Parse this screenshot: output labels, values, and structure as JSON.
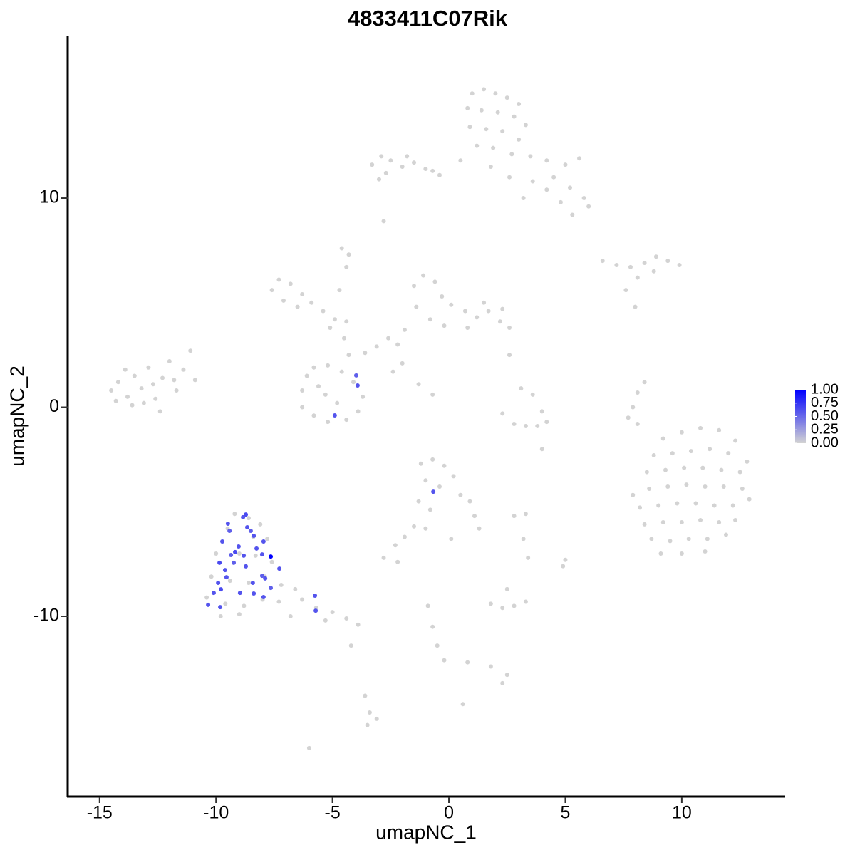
{
  "chart_data": {
    "type": "scatter",
    "title": "4833411C07Rik",
    "x_label": "umapNC_1",
    "y_label": "umapNC_2",
    "xlim": [
      -16.37,
      14.44
    ],
    "ylim": [
      -18.62,
      17.77
    ],
    "xticks": [
      -15,
      -10,
      -5,
      0,
      5,
      10
    ],
    "yticks": [
      -10,
      0,
      10
    ],
    "low_color": "#d3d3d3",
    "high_color": "#0000ff",
    "color_range": [
      0,
      1
    ],
    "color_ticks": [
      {
        "value": 1,
        "label": "1.00"
      },
      {
        "value": 0.75,
        "label": "0.75"
      },
      {
        "value": 0.5,
        "label": "0.50"
      },
      {
        "value": 0.25,
        "label": "0.25"
      },
      {
        "value": 0,
        "label": "0.00"
      }
    ],
    "x": [
      1,
      1.5,
      2,
      2.5,
      3,
      0.8,
      1.4,
      2.1,
      2.8,
      3.3,
      0.9,
      1.6,
      2.3,
      3,
      1.2,
      1.9,
      2.7,
      3.5,
      4.2,
      5,
      5.6,
      4.5,
      5.2,
      5.8,
      6,
      4.8,
      4.2,
      3.6,
      0.5,
      -0.4,
      1.8,
      2.6,
      5.3,
      3.2,
      -3.3,
      -2.9,
      -2.5,
      -2,
      -1.5,
      -1,
      -2.7,
      -3,
      -1.8,
      -0.7,
      -2.8,
      -14.5,
      -14.2,
      -13.8,
      -13.5,
      -13.2,
      -12.9,
      -12.6,
      -12.3,
      -12,
      -11.7,
      -11.4,
      -11.1,
      -13.9,
      -13.1,
      -14.3,
      -12.4,
      -11.8,
      -10.9,
      -13.6,
      -12.7,
      -6.3,
      -6.1,
      -5.8,
      -5.2,
      -4.6,
      -4.1,
      -3.7,
      -3.9,
      -4.4,
      -5.2,
      -5.8,
      -6.3,
      -5.3,
      -4.8,
      -5.6,
      -4.3,
      -4.5,
      -7.6,
      -7.3,
      -6.8,
      -6.3,
      -5.9,
      -5.4,
      -4.9,
      -4.4,
      -7.1,
      -6.5,
      -4.7,
      -4.4,
      -5.1,
      -4.3,
      -4.6,
      -1.5,
      -1.1,
      -0.6,
      -0.3,
      0.1,
      0.7,
      1.2,
      1.7,
      2.2,
      2.6,
      2.3,
      1.5,
      -1.4,
      -0.8,
      -1.9,
      -2.6,
      -3.1,
      -3.6,
      -2.2,
      -2,
      -1.3,
      -0.7,
      -2.4,
      2.6,
      0.8,
      -0.2,
      6.6,
      7.2,
      7.8,
      8.4,
      8.9,
      9.4,
      9.9,
      8.1,
      7.6,
      8.8,
      9.2,
      10,
      10.8,
      11.6,
      12.3,
      8.8,
      9.6,
      10.4,
      11.2,
      12,
      12.8,
      8.5,
      9.3,
      10.1,
      10.9,
      11.7,
      12.5,
      7.9,
      8.6,
      9.4,
      10.2,
      11,
      11.8,
      12.6,
      8.2,
      9,
      9.8,
      10.6,
      11.4,
      12.2,
      12.9,
      8.4,
      9.2,
      10,
      10.8,
      11.6,
      12.3,
      8.7,
      9.5,
      10.3,
      11.1,
      11.9,
      9.1,
      10,
      11,
      -9.2,
      -8.6,
      -8.1,
      -9.5,
      -8.4,
      -7.8,
      -10,
      -9,
      -8.3,
      -7.6,
      -10.2,
      -9.4,
      -8.6,
      -7.9,
      -7.2,
      -6.6,
      -10.4,
      -9.6,
      -8.8,
      -8,
      -7.3,
      -6.3,
      -5.7,
      -5,
      -4.4,
      -3.9,
      -9.8,
      -9,
      -6.8,
      -5.3,
      -4.2,
      -1.2,
      -0.7,
      -0.2,
      0.2,
      -1,
      -0.4,
      0.5,
      0.9,
      1.1,
      -1.3,
      -0.8,
      -1.5,
      -1.9,
      -2.3,
      -2.8,
      -2.2,
      1.3,
      2.3,
      2.8,
      3.3,
      3.8,
      4.2,
      3.1,
      3.6,
      4,
      8.1,
      8.4,
      7.9,
      7.7,
      8.1,
      2.8,
      3.3,
      3.2,
      3.4,
      5,
      4.9,
      1.8,
      2.3,
      2.8,
      3.3,
      2.5,
      -0.9,
      -0.7,
      -0.5,
      -0.2,
      0.8,
      1.8,
      2.5,
      2.3,
      -3.6,
      -3.4,
      -3.5,
      -3.1,
      -6,
      0.6,
      4,
      0.1,
      -1,
      8,
      -9.49,
      -9.42,
      -8.72,
      -8.84,
      -8.66,
      -8.51,
      -9.03,
      -9.18,
      -8.26,
      -8.02,
      -7.65,
      -7.28,
      -7.89,
      -8.02,
      -8.72,
      -9.73,
      -9.85,
      -9.61,
      -9.55,
      -9.24,
      -9.91,
      -10.1,
      -9.79,
      -10.34,
      -9.82,
      -8.97,
      -8.38,
      -7.96,
      -7.65,
      -8.42,
      -5.75,
      -5.72,
      -4.9,
      -3.98,
      -3.92,
      -0.67,
      -8.38,
      -9.36,
      -8.81,
      -7.96
    ],
    "y": [
      15,
      15.2,
      15,
      14.8,
      14.5,
      14.3,
      14.2,
      14.1,
      13.9,
      13.5,
      13.4,
      13.3,
      13.2,
      12.8,
      12.5,
      12.4,
      12.1,
      12,
      11.8,
      11.6,
      11.9,
      11,
      10.5,
      10,
      9.6,
      9.8,
      10.4,
      10.8,
      11.8,
      11.1,
      11.5,
      11,
      9.2,
      10,
      11.6,
      12,
      11.8,
      11.5,
      11.7,
      11.4,
      11.2,
      10.9,
      12,
      11.3,
      8.9,
      0.8,
      1.2,
      0.5,
      1.5,
      0.9,
      1.9,
      0.4,
      1.4,
      2.2,
      0.8,
      1.8,
      2.7,
      1.8,
      0.2,
      0.3,
      -0.2,
      1.3,
      1.3,
      0.1,
      1.1,
      0.8,
      1.5,
      1.9,
      2,
      1.7,
      1.2,
      0.5,
      -0.2,
      -0.6,
      -0.7,
      -0.4,
      0,
      0.6,
      0.2,
      1,
      2.5,
      3.3,
      5.6,
      6.1,
      5.9,
      5.4,
      5,
      4.6,
      4.2,
      4.1,
      5.1,
      4.8,
      5.6,
      6.7,
      3.8,
      7.3,
      7.6,
      5.8,
      6.3,
      6,
      5.3,
      4.9,
      4.6,
      4.3,
      4.6,
      4.1,
      3.8,
      4.7,
      5,
      4.8,
      4.2,
      3.7,
      3.3,
      2.9,
      2.6,
      3,
      2.1,
      1.1,
      0.6,
      1.7,
      2.5,
      3.8,
      3.9,
      7,
      6.8,
      6.7,
      6.9,
      7.2,
      7,
      6.8,
      6.2,
      5.6,
      6.5,
      -1.5,
      -1.2,
      -1,
      -1.1,
      -1.6,
      -2.3,
      -2.2,
      -2.1,
      -2,
      -2.2,
      -2.6,
      -3.1,
      -3,
      -2.9,
      -2.9,
      -3,
      -3.1,
      -4.2,
      -3.9,
      -3.8,
      -3.7,
      -3.8,
      -3.8,
      -3.9,
      -4.8,
      -4.7,
      -4.6,
      -4.6,
      -4.7,
      -4.7,
      -4.4,
      -5.6,
      -5.5,
      -5.5,
      -5.4,
      -5.5,
      -5.4,
      -6.3,
      -6.4,
      -6.3,
      -6.3,
      -6.1,
      -7,
      -7,
      -6.9,
      -5.1,
      -5.3,
      -5.6,
      -5.8,
      -6.2,
      -6.3,
      -7,
      -7,
      -7.1,
      -7.4,
      -8.1,
      -8.3,
      -8.4,
      -8.1,
      -8.5,
      -8.7,
      -9.1,
      -9.4,
      -9.5,
      -9.2,
      -9.3,
      -9.2,
      -9.6,
      -9.8,
      -10.1,
      -10.4,
      -10,
      -9.9,
      -10,
      -10.2,
      -11.4,
      -2.7,
      -2.5,
      -2.8,
      -3.3,
      -3.5,
      -3.8,
      -4.2,
      -4.5,
      -5.2,
      -4.5,
      -4.9,
      -5.7,
      -6.2,
      -6.6,
      -7.2,
      -7.4,
      -5.8,
      -0.3,
      -0.8,
      -0.9,
      -0.9,
      -0.7,
      0.9,
      0.6,
      -0.2,
      0.7,
      1.2,
      0,
      -0.5,
      -0.8,
      -5.2,
      -5.1,
      -6.3,
      -7.2,
      -7.3,
      -7.6,
      -9.4,
      -9.6,
      -9.5,
      -9.3,
      -8.7,
      -9.5,
      -10.5,
      -11.4,
      -12.1,
      -12.2,
      -12.4,
      -12.8,
      -13.2,
      -13.8,
      -14.6,
      -15.2,
      -14.9,
      -16.3,
      -14.2,
      -2,
      -6.3,
      -5.8,
      4.8,
      -5.57,
      -5.91,
      -5.13,
      -5.26,
      -5.74,
      -5.91,
      -6.66,
      -6.93,
      -6.76,
      -7.04,
      -7.14,
      -7.72,
      -8.19,
      -8.06,
      -7.61,
      -6.42,
      -7.44,
      -7.79,
      -8.13,
      -7.44,
      -8.4,
      -8.88,
      -8.71,
      -9.45,
      -9.56,
      -8.88,
      -8.91,
      -9.08,
      -8.64,
      -8.4,
      -9.01,
      -9.73,
      -0.39,
      1.52,
      1.04,
      -4.04,
      -6.15,
      -7.07,
      -7.1,
      -6.42
    ],
    "values": [
      0,
      0,
      0,
      0,
      0,
      0,
      0,
      0,
      0,
      0,
      0,
      0,
      0,
      0,
      0,
      0,
      0,
      0,
      0,
      0,
      0,
      0,
      0,
      0,
      0,
      0,
      0,
      0,
      0,
      0,
      0,
      0,
      0,
      0,
      0,
      0,
      0,
      0,
      0,
      0,
      0,
      0,
      0,
      0,
      0,
      0,
      0,
      0,
      0,
      0,
      0,
      0,
      0,
      0,
      0,
      0,
      0,
      0,
      0,
      0,
      0,
      0,
      0,
      0,
      0,
      0,
      0,
      0,
      0,
      0,
      0,
      0,
      0,
      0,
      0,
      0,
      0,
      0,
      0,
      0,
      0,
      0,
      0,
      0,
      0,
      0,
      0,
      0,
      0,
      0,
      0,
      0,
      0,
      0,
      0,
      0,
      0,
      0,
      0,
      0,
      0,
      0,
      0,
      0,
      0,
      0,
      0,
      0,
      0,
      0,
      0,
      0,
      0,
      0,
      0,
      0,
      0,
      0,
      0,
      0,
      0,
      0,
      0,
      0,
      0,
      0,
      0,
      0,
      0,
      0,
      0,
      0,
      0,
      0,
      0,
      0,
      0,
      0,
      0,
      0,
      0,
      0,
      0,
      0,
      0,
      0,
      0,
      0,
      0,
      0,
      0,
      0,
      0,
      0,
      0,
      0,
      0,
      0,
      0,
      0,
      0,
      0,
      0,
      0,
      0,
      0,
      0,
      0,
      0,
      0,
      0,
      0,
      0,
      0,
      0,
      0,
      0,
      0,
      0,
      0,
      0,
      0,
      0,
      0,
      0,
      0,
      0,
      0,
      0,
      0,
      0,
      0,
      0,
      0,
      0,
      0,
      0,
      0,
      0,
      0,
      0,
      0,
      0,
      0,
      0,
      0,
      0,
      0,
      0,
      0,
      0,
      0,
      0,
      0,
      0,
      0,
      0,
      0,
      0,
      0,
      0,
      0,
      0,
      0,
      0,
      0,
      0,
      0,
      0,
      0,
      0,
      0,
      0,
      0,
      0,
      0,
      0,
      0,
      0,
      0,
      0,
      0,
      0,
      0,
      0,
      0,
      0,
      0,
      0,
      0,
      0,
      0,
      0,
      0,
      0,
      0,
      0,
      0,
      0,
      0,
      0,
      0,
      0,
      0,
      0,
      0,
      0,
      0,
      0.6,
      0.55,
      0.65,
      0.6,
      0.6,
      0.55,
      0.6,
      0.65,
      0.6,
      0.6,
      1,
      0.6,
      0.6,
      0.55,
      0.6,
      0.6,
      0.65,
      0.6,
      0.6,
      0.55,
      0.6,
      0.6,
      0.65,
      0.6,
      0.6,
      0.6,
      0.6,
      0.6,
      0.55,
      0.6,
      0.6,
      0.6,
      0.6,
      0.55,
      0.6,
      0.6,
      0.6,
      0.55,
      0.6,
      0.6
    ]
  }
}
